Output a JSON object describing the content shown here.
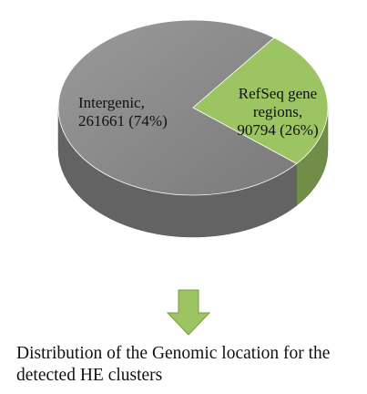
{
  "chart_data": {
    "type": "pie",
    "categories": [
      "Intergenic,",
      "RefSeq gene regions,"
    ],
    "values": [
      261661,
      90794
    ],
    "value_labels": [
      "261661 (74%)",
      "90794 (26%)"
    ],
    "colors": [
      "#8a8a8a",
      "#9dc463"
    ],
    "caption": "Distribution of the Genomic location for the detected HE clusters"
  }
}
